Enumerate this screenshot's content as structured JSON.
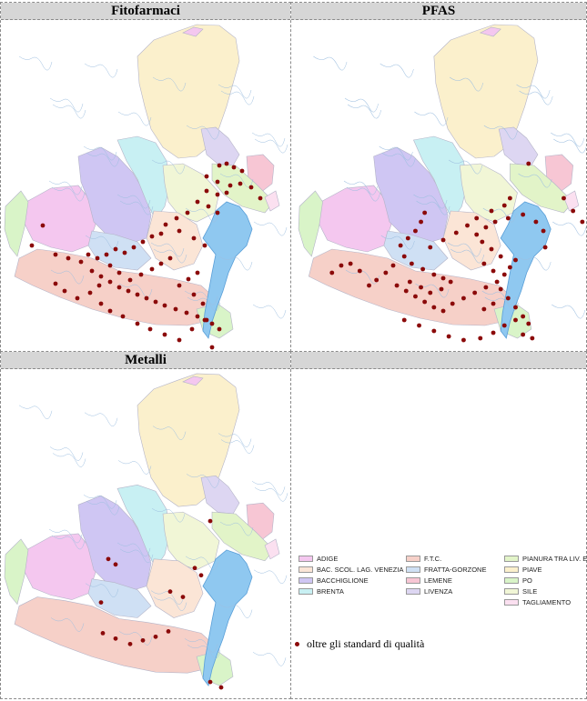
{
  "panels": {
    "fitofarmaci": {
      "title": "Fitofarmaci"
    },
    "pfas": {
      "title": "PFAS"
    },
    "metalli": {
      "title": "Metalli"
    }
  },
  "legend": {
    "basins": [
      {
        "label": "ADIGE",
        "color": "#f4c7ef"
      },
      {
        "label": "BAC. SCOL. LAG. VENEZIA",
        "color": "#fbe5d6"
      },
      {
        "label": "BACCHIGLIONE",
        "color": "#cfc6f3"
      },
      {
        "label": "BRENTA",
        "color": "#c8f0f3"
      },
      {
        "label": "F.T.C.",
        "color": "#f6d0c8"
      },
      {
        "label": "FRATTA-GORZONE",
        "color": "#cfe0f4"
      },
      {
        "label": "LEMENE",
        "color": "#f7c6d4"
      },
      {
        "label": "LIVENZA",
        "color": "#ddd6f2"
      },
      {
        "label": "PIANURA TRA LIV. E PIAVE",
        "color": "#e2f4c8"
      },
      {
        "label": "PIAVE",
        "color": "#fbf0cc"
      },
      {
        "label": "PO",
        "color": "#d9f4c8"
      },
      {
        "label": "SILE",
        "color": "#f1f6d6"
      },
      {
        "label": "TAGLIAMENTO",
        "color": "#fbe0f0"
      }
    ],
    "point_label": "oltre gli standard di qualità",
    "point_color": "#8b0a0a"
  }
}
